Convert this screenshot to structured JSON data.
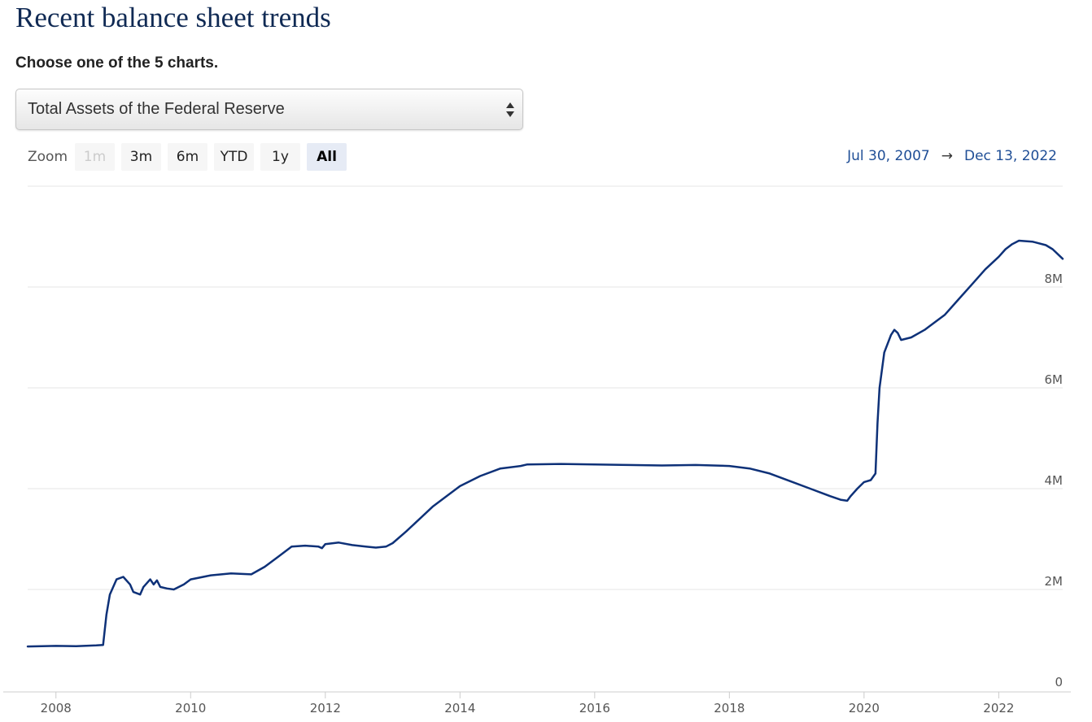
{
  "page": {
    "title": "Recent balance sheet trends",
    "subtitle": "Choose one of the 5 charts.",
    "selector": {
      "selected": "Total Assets of the Federal Reserve"
    }
  },
  "zoom": {
    "label": "Zoom",
    "buttons": [
      {
        "label": "1m",
        "state": "disabled"
      },
      {
        "label": "3m",
        "state": "normal"
      },
      {
        "label": "6m",
        "state": "normal"
      },
      {
        "label": "YTD",
        "state": "normal"
      },
      {
        "label": "1y",
        "state": "normal"
      },
      {
        "label": "All",
        "state": "active"
      }
    ]
  },
  "range": {
    "from": "Jul 30, 2007",
    "arrow": "→",
    "to": "Dec 13, 2022"
  },
  "colors": {
    "line": "#0e3178",
    "title": "#102a54",
    "range_text": "#1f4e96",
    "grid": "#e6e6e6"
  },
  "chart_data": {
    "type": "line",
    "title": "",
    "xlabel": "",
    "ylabel": "",
    "x_range": [
      2007.58,
      2022.95
    ],
    "ylim": [
      0,
      9000000
    ],
    "x_ticks": [
      {
        "value": 2008,
        "label": "2008"
      },
      {
        "value": 2010,
        "label": "2010"
      },
      {
        "value": 2012,
        "label": "2012"
      },
      {
        "value": 2014,
        "label": "2014"
      },
      {
        "value": 2016,
        "label": "2016"
      },
      {
        "value": 2018,
        "label": "2018"
      },
      {
        "value": 2020,
        "label": "2020"
      },
      {
        "value": 2022,
        "label": "2022"
      }
    ],
    "y_ticks": [
      {
        "value": 0,
        "label": "0"
      },
      {
        "value": 2000000,
        "label": "2M"
      },
      {
        "value": 4000000,
        "label": "4M"
      },
      {
        "value": 6000000,
        "label": "6M"
      },
      {
        "value": 8000000,
        "label": "8M"
      }
    ],
    "grid": true,
    "legend": "none",
    "series": [
      {
        "x": [
          2007.58,
          2008.0,
          2008.3,
          2008.6,
          2008.7,
          2008.75,
          2008.8,
          2008.9,
          2009.0,
          2009.1,
          2009.15,
          2009.25,
          2009.3,
          2009.4,
          2009.45,
          2009.5,
          2009.55,
          2009.65,
          2009.75,
          2009.9,
          2010.0,
          2010.3,
          2010.6,
          2010.9,
          2011.1,
          2011.3,
          2011.5,
          2011.7,
          2011.9,
          2011.95,
          2012.0,
          2012.2,
          2012.4,
          2012.6,
          2012.75,
          2012.9,
          2013.0,
          2013.2,
          2013.4,
          2013.6,
          2013.8,
          2014.0,
          2014.3,
          2014.6,
          2014.9,
          2015.0,
          2015.5,
          2016.0,
          2016.5,
          2017.0,
          2017.5,
          2018.0,
          2018.3,
          2018.6,
          2018.9,
          2019.2,
          2019.5,
          2019.65,
          2019.75,
          2019.8,
          2019.9,
          2020.0,
          2020.1,
          2020.17,
          2020.2,
          2020.23,
          2020.3,
          2020.4,
          2020.45,
          2020.5,
          2020.55,
          2020.7,
          2020.9,
          2021.0,
          2021.2,
          2021.4,
          2021.6,
          2021.8,
          2022.0,
          2022.1,
          2022.2,
          2022.3,
          2022.5,
          2022.7,
          2022.8,
          2022.95
        ],
        "y": [
          870000,
          880000,
          875000,
          890000,
          900000,
          1500000,
          1900000,
          2200000,
          2250000,
          2100000,
          1950000,
          1900000,
          2050000,
          2200000,
          2100000,
          2180000,
          2050000,
          2020000,
          2000000,
          2100000,
          2200000,
          2280000,
          2320000,
          2300000,
          2450000,
          2650000,
          2850000,
          2870000,
          2850000,
          2820000,
          2900000,
          2930000,
          2880000,
          2850000,
          2830000,
          2850000,
          2920000,
          3150000,
          3400000,
          3650000,
          3850000,
          4050000,
          4250000,
          4400000,
          4450000,
          4480000,
          4490000,
          4480000,
          4470000,
          4460000,
          4470000,
          4450000,
          4400000,
          4300000,
          4150000,
          4000000,
          3850000,
          3780000,
          3760000,
          3850000,
          4000000,
          4130000,
          4170000,
          4300000,
          5300000,
          6000000,
          6700000,
          7050000,
          7150000,
          7090000,
          6950000,
          7000000,
          7150000,
          7250000,
          7450000,
          7750000,
          8050000,
          8350000,
          8600000,
          8750000,
          8850000,
          8920000,
          8900000,
          8830000,
          8750000,
          8560000
        ]
      }
    ]
  }
}
